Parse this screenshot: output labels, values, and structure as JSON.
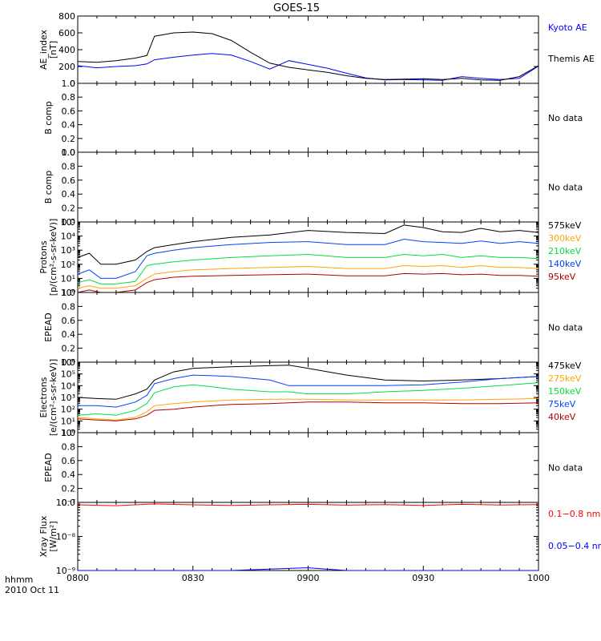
{
  "title": "GOES-15",
  "footer": {
    "line1": "hhmm",
    "line2": "2010 Oct 11"
  },
  "x_ticks": [
    "0800",
    "0830",
    "0900",
    "0930",
    "1000"
  ],
  "colors": {
    "black": "#000000",
    "blue": "#0000ff",
    "red": "#ff0000",
    "darkred": "#b00000",
    "orange": "#ffa500",
    "green": "#00e040",
    "royal": "#0040ff"
  },
  "chart_data": [
    {
      "id": "ae",
      "type": "line",
      "ylabel": [
        "AE_index",
        "[nT]"
      ],
      "ylim": [
        0,
        800
      ],
      "yticks": [
        "0",
        "200",
        "400",
        "600",
        "800"
      ],
      "x": [
        "0800",
        "0805",
        "0810",
        "0815",
        "0818",
        "0820",
        "0825",
        "0830",
        "0835",
        "0840",
        "0845",
        "0850",
        "0855",
        "0900",
        "0905",
        "0910",
        "0915",
        "0920",
        "0925",
        "0930",
        "0935",
        "0940",
        "0945",
        "0950",
        "0955",
        "1000"
      ],
      "series": [
        {
          "name": "Kyoto AE",
          "color": "blue",
          "values": [
            210,
            185,
            200,
            210,
            230,
            280,
            310,
            335,
            355,
            335,
            260,
            170,
            270,
            225,
            180,
            120,
            65,
            40,
            45,
            40,
            35,
            80,
            60,
            45,
            60,
            205
          ]
        },
        {
          "name": "Themis AE",
          "color": "black",
          "values": [
            260,
            250,
            270,
            300,
            330,
            560,
            600,
            610,
            590,
            510,
            370,
            240,
            190,
            160,
            130,
            90,
            60,
            45,
            50,
            55,
            45,
            60,
            40,
            35,
            80,
            210
          ]
        }
      ]
    },
    {
      "id": "b1",
      "type": "line",
      "ylabel": [
        "B comp"
      ],
      "ylim": [
        0,
        1
      ],
      "yticks": [
        "0.0",
        "0.2",
        "0.4",
        "0.6",
        "0.8",
        "1.0"
      ],
      "note": "No data",
      "series": []
    },
    {
      "id": "b2",
      "type": "line",
      "ylabel": [
        "B comp"
      ],
      "ylim": [
        0,
        1
      ],
      "yticks": [
        "0.0",
        "0.2",
        "0.4",
        "0.6",
        "0.8",
        "1.0"
      ],
      "note": "No data",
      "series": []
    },
    {
      "id": "protons",
      "type": "line",
      "scale": "log",
      "ylabel": [
        "Protons",
        "[p/(cm²-s-sr-keV)]"
      ],
      "ylim": [
        1,
        100000
      ],
      "yticks": [
        "10⁰",
        "10¹",
        "10²",
        "10³",
        "10⁴",
        "10⁵"
      ],
      "x": [
        "0800",
        "0803",
        "0806",
        "0810",
        "0815",
        "0818",
        "0820",
        "0825",
        "0830",
        "0840",
        "0850",
        "0900",
        "0910",
        "0920",
        "0925",
        "0930",
        "0935",
        "0940",
        "0945",
        "0950",
        "0955",
        "1000"
      ],
      "series": [
        {
          "name": "575keV",
          "color": "black",
          "values": [
            300,
            600,
            100,
            100,
            200,
            800,
            1500,
            2500,
            4000,
            8000,
            12000,
            25000,
            18000,
            15000,
            60000,
            40000,
            20000,
            18000,
            35000,
            20000,
            25000,
            18000
          ]
        },
        {
          "name": "300keV",
          "color": "orange",
          "values": [
            2,
            3,
            2,
            2,
            3,
            10,
            20,
            30,
            40,
            50,
            60,
            70,
            50,
            50,
            80,
            70,
            80,
            60,
            80,
            60,
            60,
            50
          ]
        },
        {
          "name": "210keV",
          "color": "green",
          "values": [
            5,
            8,
            4,
            4,
            6,
            80,
            100,
            150,
            200,
            300,
            400,
            500,
            300,
            300,
            500,
            400,
            500,
            300,
            400,
            300,
            300,
            250
          ]
        },
        {
          "name": "140keV",
          "color": "royal",
          "values": [
            20,
            40,
            10,
            10,
            30,
            400,
            600,
            1000,
            1500,
            2500,
            3500,
            4000,
            2500,
            2500,
            6000,
            4000,
            3500,
            3000,
            4500,
            3000,
            4000,
            3000
          ]
        },
        {
          "name": "95keV",
          "color": "darkred",
          "values": [
            1,
            1.5,
            1,
            1,
            1.5,
            5,
            8,
            12,
            14,
            16,
            18,
            20,
            15,
            15,
            22,
            20,
            22,
            18,
            20,
            16,
            16,
            14
          ]
        }
      ]
    },
    {
      "id": "epead1",
      "type": "line",
      "ylabel": [
        "EPEAD"
      ],
      "ylim": [
        0,
        1
      ],
      "yticks": [
        "0.0",
        "0.2",
        "0.4",
        "0.6",
        "0.8",
        "1.0"
      ],
      "note": "No data",
      "series": []
    },
    {
      "id": "electrons",
      "type": "line",
      "scale": "log",
      "ylabel": [
        "Electrons",
        "[e/(cm²-s-sr-keV)]"
      ],
      "ylim": [
        1,
        1000000
      ],
      "yticks": [
        "10⁰",
        "10¹",
        "10²",
        "10³",
        "10⁴",
        "10⁵",
        "10⁶"
      ],
      "x": [
        "0800",
        "0805",
        "0810",
        "0815",
        "0818",
        "0820",
        "0825",
        "0830",
        "0835",
        "0840",
        "0850",
        "0855",
        "0900",
        "0910",
        "0920",
        "0930",
        "0940",
        "0950",
        "1000"
      ],
      "series": [
        {
          "name": "475keV",
          "color": "black",
          "values": [
            1000,
            800,
            700,
            2000,
            5000,
            30000,
            150000,
            300000,
            350000,
            400000,
            500000,
            550000,
            300000,
            80000,
            30000,
            25000,
            30000,
            40000,
            60000
          ]
        },
        {
          "name": "275keV",
          "color": "orange",
          "values": [
            20,
            15,
            12,
            20,
            60,
            200,
            300,
            400,
            500,
            600,
            700,
            700,
            700,
            600,
            600,
            600,
            600,
            700,
            800
          ]
        },
        {
          "name": "150keV",
          "color": "green",
          "values": [
            30,
            40,
            30,
            80,
            300,
            2500,
            8000,
            12000,
            8000,
            5000,
            3000,
            3000,
            2000,
            2000,
            3000,
            4000,
            6000,
            10000,
            18000
          ]
        },
        {
          "name": "75keV",
          "color": "royal",
          "values": [
            200,
            200,
            150,
            400,
            1500,
            15000,
            40000,
            80000,
            70000,
            60000,
            30000,
            10000,
            10000,
            10000,
            10000,
            12000,
            20000,
            40000,
            60000
          ]
        },
        {
          "name": "40keV",
          "color": "darkred",
          "values": [
            15,
            12,
            10,
            15,
            30,
            80,
            100,
            150,
            200,
            250,
            300,
            350,
            400,
            400,
            350,
            350,
            300,
            300,
            350
          ]
        }
      ]
    },
    {
      "id": "epead2",
      "type": "line",
      "ylabel": [
        "EPEAD"
      ],
      "ylim": [
        0,
        1
      ],
      "yticks": [
        "0.0",
        "0.2",
        "0.4",
        "0.6",
        "0.8",
        "1.0"
      ],
      "note": "No data",
      "series": []
    },
    {
      "id": "xray",
      "type": "line",
      "scale": "log",
      "ylabel": [
        "Xray Flux",
        "[W/m²]"
      ],
      "ylim": [
        1e-09,
        1e-07
      ],
      "yticks": [
        "10⁻⁹",
        "10⁻⁸",
        "10⁻⁷"
      ],
      "x": [
        "0800",
        "0810",
        "0820",
        "0830",
        "0840",
        "0850",
        "0900",
        "0910",
        "0920",
        "0930",
        "0940",
        "0950",
        "1000"
      ],
      "series": [
        {
          "name": "0.1−0.8 nm",
          "color": "red",
          "values": [
            8.5e-08,
            8e-08,
            9e-08,
            8.5e-08,
            8.2e-08,
            8.5e-08,
            8.8e-08,
            8.3e-08,
            8.6e-08,
            8.2e-08,
            8.8e-08,
            8.4e-08,
            8.6e-08
          ]
        },
        {
          "name": "0.05−0.4 nm",
          "color": "blue",
          "values": [
            1e-09,
            1e-09,
            1e-09,
            1e-09,
            1e-09,
            1.1e-09,
            1.2e-09,
            1e-09,
            1e-09,
            1e-09,
            1e-09,
            1e-09,
            1e-09
          ]
        }
      ]
    }
  ]
}
